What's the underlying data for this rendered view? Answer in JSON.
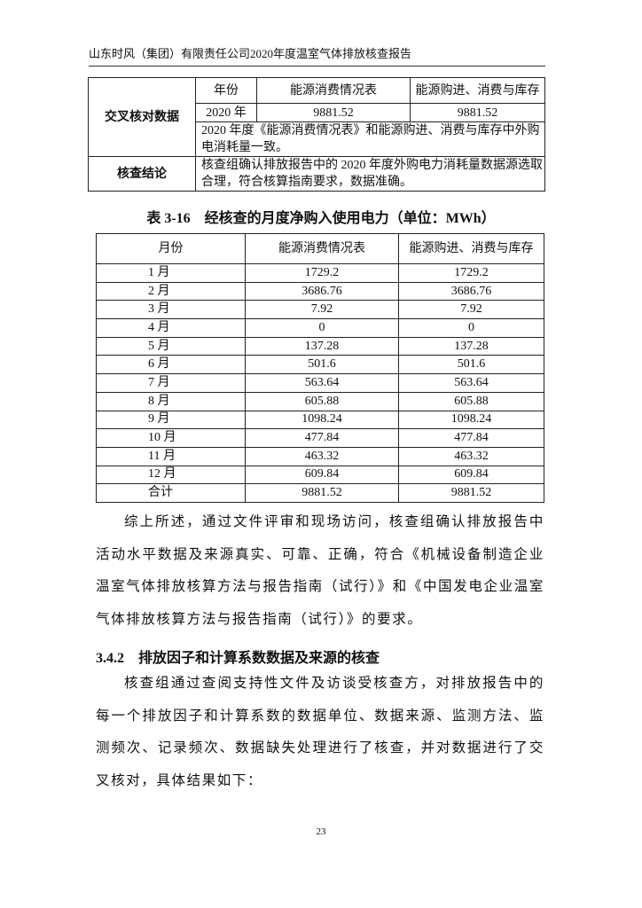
{
  "header": "山东时风（集团）有限责任公司2020年度温室气体排放核查报告",
  "cross_check": {
    "label": "交叉核对数据",
    "col_year": "年份",
    "col_a": "能源消费情况表",
    "col_b": "能源购进、消费与库存",
    "year": "2020 年",
    "val_a": "9881.52",
    "val_b": "9881.52",
    "note": "2020 年度《能源消费情况表》和能源购进、消费与库存中外购电消耗量一致。",
    "conclusion_label": "核查结论",
    "conclusion": "核查组确认排放报告中的 2020 年度外购电力消耗量数据源选取合理，符合核算指南要求，数据准确。"
  },
  "table_caption": "表 3-16　经核查的月度净购入使用电力（单位：MWh）",
  "monthly": {
    "headers": [
      "月份",
      "能源消费情况表",
      "能源购进、消费与库存"
    ],
    "rows": [
      [
        "1 月",
        "1729.2",
        "1729.2"
      ],
      [
        "2 月",
        "3686.76",
        "3686.76"
      ],
      [
        "3 月",
        "7.92",
        "7.92"
      ],
      [
        "4 月",
        "0",
        "0"
      ],
      [
        "5 月",
        "137.28",
        "137.28"
      ],
      [
        "6 月",
        "501.6",
        "501.6"
      ],
      [
        "7 月",
        "563.64",
        "563.64"
      ],
      [
        "8 月",
        "605.88",
        "605.88"
      ],
      [
        "9 月",
        "1098.24",
        "1098.24"
      ],
      [
        "10 月",
        "477.84",
        "477.84"
      ],
      [
        "11 月",
        "463.32",
        "463.32"
      ],
      [
        "12 月",
        "609.84",
        "609.84"
      ],
      [
        "合计",
        "9881.52",
        "9881.52"
      ]
    ]
  },
  "summary": "综上所述，通过文件评审和现场访问，核查组确认排放报告中活动水平数据及来源真实、可靠、正确，符合《机械设备制造企业温室气体排放核算方法与报告指南（试行）》和《中国发电企业温室气体排放核算方法与报告指南（试行）》的要求。",
  "section": "3.4.2　排放因子和计算系数数据及来源的核查",
  "section_body": "核查组通过查阅支持性文件及访谈受核查方，对排放报告中的每一个排放因子和计算系数的数据单位、数据来源、监测方法、监测频次、记录频次、数据缺失处理进行了核查，并对数据进行了交叉核对，具体结果如下：",
  "page_number": "23"
}
